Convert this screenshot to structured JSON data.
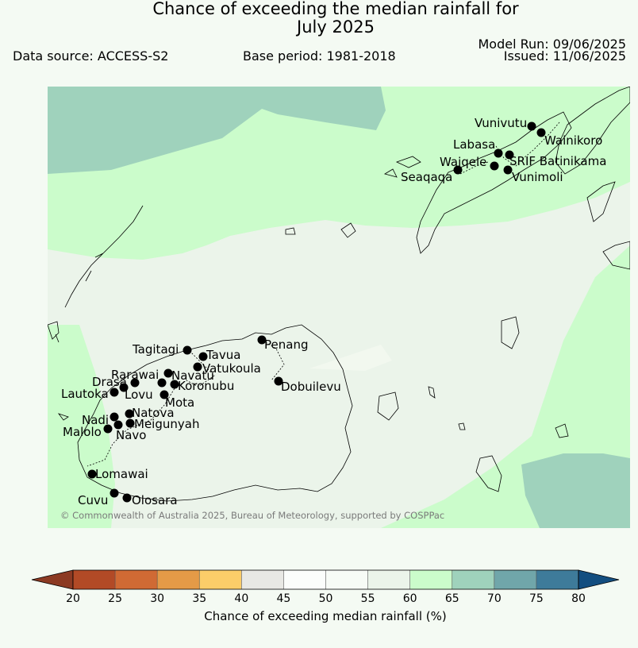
{
  "header": {
    "title_line1": "Chance of exceeding the median rainfall for",
    "title_line2": "July 2025",
    "data_source": "Data source: ACCESS-S2",
    "base_period": "Base period: 1981-2018",
    "model_run": "Model Run: 09/06/2025",
    "issued": "Issued: 11/06/2025"
  },
  "map": {
    "copyright": "© Commonwealth of Australia 2025, Bureau of Meteorology, supported by COSPPac",
    "colors": {
      "p45_55": "#ebf4ea",
      "p55_60": "#cbfccb",
      "p65_70": "#9fd2bc",
      "p70_75": "#70a6aa",
      "p40_45": "#e8e8e4",
      "highlight": "#f2f8ef"
    },
    "stations": [
      {
        "name": "Vunivutu"
      },
      {
        "name": "Wainikoro"
      },
      {
        "name": "Labasa"
      },
      {
        "name": "SRIF Batinikama"
      },
      {
        "name": "Waiqele"
      },
      {
        "name": "Seaqaqa"
      },
      {
        "name": "Vunimoli"
      },
      {
        "name": "Penang"
      },
      {
        "name": "Tagitagi"
      },
      {
        "name": "Tavua"
      },
      {
        "name": "Vatukoula"
      },
      {
        "name": "Rarawai"
      },
      {
        "name": "Navatu"
      },
      {
        "name": "Koronubu"
      },
      {
        "name": "Drasa"
      },
      {
        "name": "Lautoka"
      },
      {
        "name": "Lovu"
      },
      {
        "name": "Mota"
      },
      {
        "name": "Dobuilevu"
      },
      {
        "name": "Natova"
      },
      {
        "name": "Nadi"
      },
      {
        "name": "Meigunyah"
      },
      {
        "name": "Malolo"
      },
      {
        "name": "Navo"
      },
      {
        "name": "Lomawai"
      },
      {
        "name": "Cuvu"
      },
      {
        "name": "Olosara"
      }
    ]
  },
  "colorbar": {
    "label": "Chance of exceeding median rainfall (%)",
    "ticks": [
      "20",
      "25",
      "30",
      "35",
      "40",
      "45",
      "50",
      "55",
      "60",
      "65",
      "70",
      "75",
      "80"
    ],
    "colors": [
      "#8c3a23",
      "#b24a26",
      "#d06a34",
      "#e49a47",
      "#fbcd69",
      "#e8e8e4",
      "#fbfdfb",
      "#f7fbf6",
      "#ebf4ea",
      "#cbfccb",
      "#9fd2bc",
      "#70a6aa",
      "#3e7b9a",
      "#134e80"
    ]
  }
}
